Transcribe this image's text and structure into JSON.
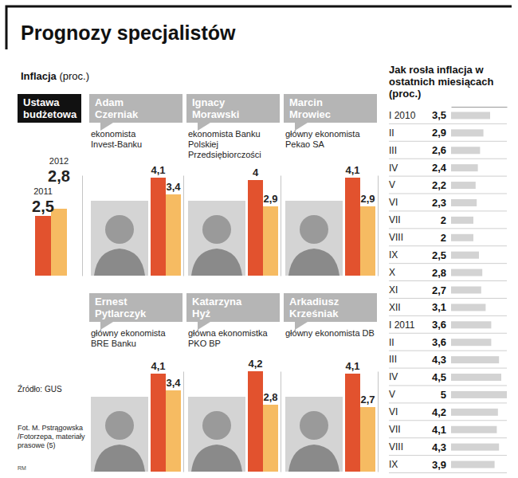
{
  "title": "Prognozy specjalistów",
  "subtitle": "Inflacja (proc.)",
  "source": "Źródło: GUS",
  "credit": "Fot. M. Pstrągowska /Fotorzepa, materiały prasowe (5)",
  "signature": "RM",
  "chart_data": [
    {
      "type": "bar",
      "title": "Ustawa budżetowa",
      "categories": [
        "2011",
        "2012"
      ],
      "values": [
        2.5,
        2.8
      ],
      "value_labels": [
        "2,5",
        "2,8"
      ],
      "colors": [
        "#e2522e",
        "#f6bb62"
      ],
      "ylim": [
        0,
        4.2
      ],
      "yticks": [],
      "tick_labels": "x",
      "data_labels": true
    },
    {
      "type": "bar",
      "title": "Adam Czerniak",
      "subtitle": "ekonomista Invest-Banku",
      "categories": [
        null,
        null
      ],
      "values": [
        4.1,
        3.4
      ],
      "value_labels": [
        "4,1",
        "3,4"
      ],
      "colors": [
        "#e2522e",
        "#f6bb62"
      ],
      "ylim": [
        0,
        4.2
      ],
      "yticks": [],
      "tick_labels": false,
      "data_labels": true
    },
    {
      "type": "bar",
      "title": "Ignacy Morawski",
      "subtitle": "ekonomista Banku Polskiej Przedsiębiorczości",
      "categories": [
        null,
        null
      ],
      "values": [
        4,
        2.9
      ],
      "value_labels": [
        "4",
        "2,9"
      ],
      "colors": [
        "#e2522e",
        "#f6bb62"
      ],
      "ylim": [
        0,
        4.2
      ],
      "yticks": [],
      "tick_labels": false,
      "data_labels": true
    },
    {
      "type": "bar",
      "title": "Marcin Mrowiec",
      "subtitle": "główny ekonomista Pekao SA",
      "categories": [
        null,
        null
      ],
      "values": [
        4.1,
        2.9
      ],
      "value_labels": [
        "4,1",
        "2,9"
      ],
      "colors": [
        "#e2522e",
        "#f6bb62"
      ],
      "ylim": [
        0,
        4.2
      ],
      "yticks": [],
      "tick_labels": false,
      "data_labels": true
    },
    {
      "type": "bar",
      "title": "Ernest Pytlarczyk",
      "subtitle": "główny ekonomista BRE Banku",
      "categories": [
        null,
        null
      ],
      "values": [
        4.1,
        3.4
      ],
      "value_labels": [
        "4,1",
        "3,4"
      ],
      "colors": [
        "#e2522e",
        "#f6bb62"
      ],
      "ylim": [
        0,
        4.2
      ],
      "yticks": [],
      "tick_labels": false,
      "data_labels": true
    },
    {
      "type": "bar",
      "title": "Katarzyna Hyż",
      "subtitle": "główna ekonomistka PKO BP",
      "categories": [
        null,
        null
      ],
      "values": [
        4.2,
        2.8
      ],
      "value_labels": [
        "4,2",
        "2,8"
      ],
      "colors": [
        "#e2522e",
        "#f6bb62"
      ],
      "ylim": [
        0,
        4.2
      ],
      "yticks": [],
      "tick_labels": false,
      "data_labels": true
    },
    {
      "type": "bar",
      "title": "Arkadiusz Krześniak",
      "subtitle": "główny ekonomista DB",
      "categories": [
        null,
        null
      ],
      "values": [
        4.1,
        2.7
      ],
      "value_labels": [
        "4,1",
        "2,7"
      ],
      "colors": [
        "#e2522e",
        "#f6bb62"
      ],
      "ylim": [
        0,
        4.2
      ],
      "yticks": [],
      "tick_labels": false,
      "data_labels": true
    },
    {
      "type": "bar",
      "orientation": "horizontal",
      "title": "Jak rosła inflacja w ostatnich miesiącach (proc.)",
      "categories": [
        "I 2010",
        "II",
        "III",
        "IV",
        "V",
        "VI",
        "VII",
        "VIII",
        "IX",
        "X",
        "XI",
        "XII",
        "I 2011",
        "II",
        "III",
        "IV",
        "V",
        "VI",
        "VII",
        "VIII",
        "IX"
      ],
      "values": [
        3.5,
        2.9,
        2.6,
        2.4,
        2.2,
        2.3,
        2,
        2,
        2.5,
        2.8,
        2.7,
        3.1,
        3.6,
        3.6,
        4.3,
        4.5,
        5,
        4.2,
        4.1,
        4.3,
        3.9
      ],
      "value_labels": [
        "3,5",
        "2,9",
        "2,6",
        "2,4",
        "2,2",
        "2,3",
        "2",
        "2",
        "2,5",
        "2,8",
        "2,7",
        "3,1",
        "3,6",
        "3,6",
        "4,3",
        "4,5",
        "5",
        "4,2",
        "4,1",
        "4,3",
        "3,9"
      ],
      "color": "#d3d3d3",
      "xlim": [
        0,
        5
      ],
      "xticks": [],
      "tick_labels": "y",
      "data_labels": true
    }
  ]
}
